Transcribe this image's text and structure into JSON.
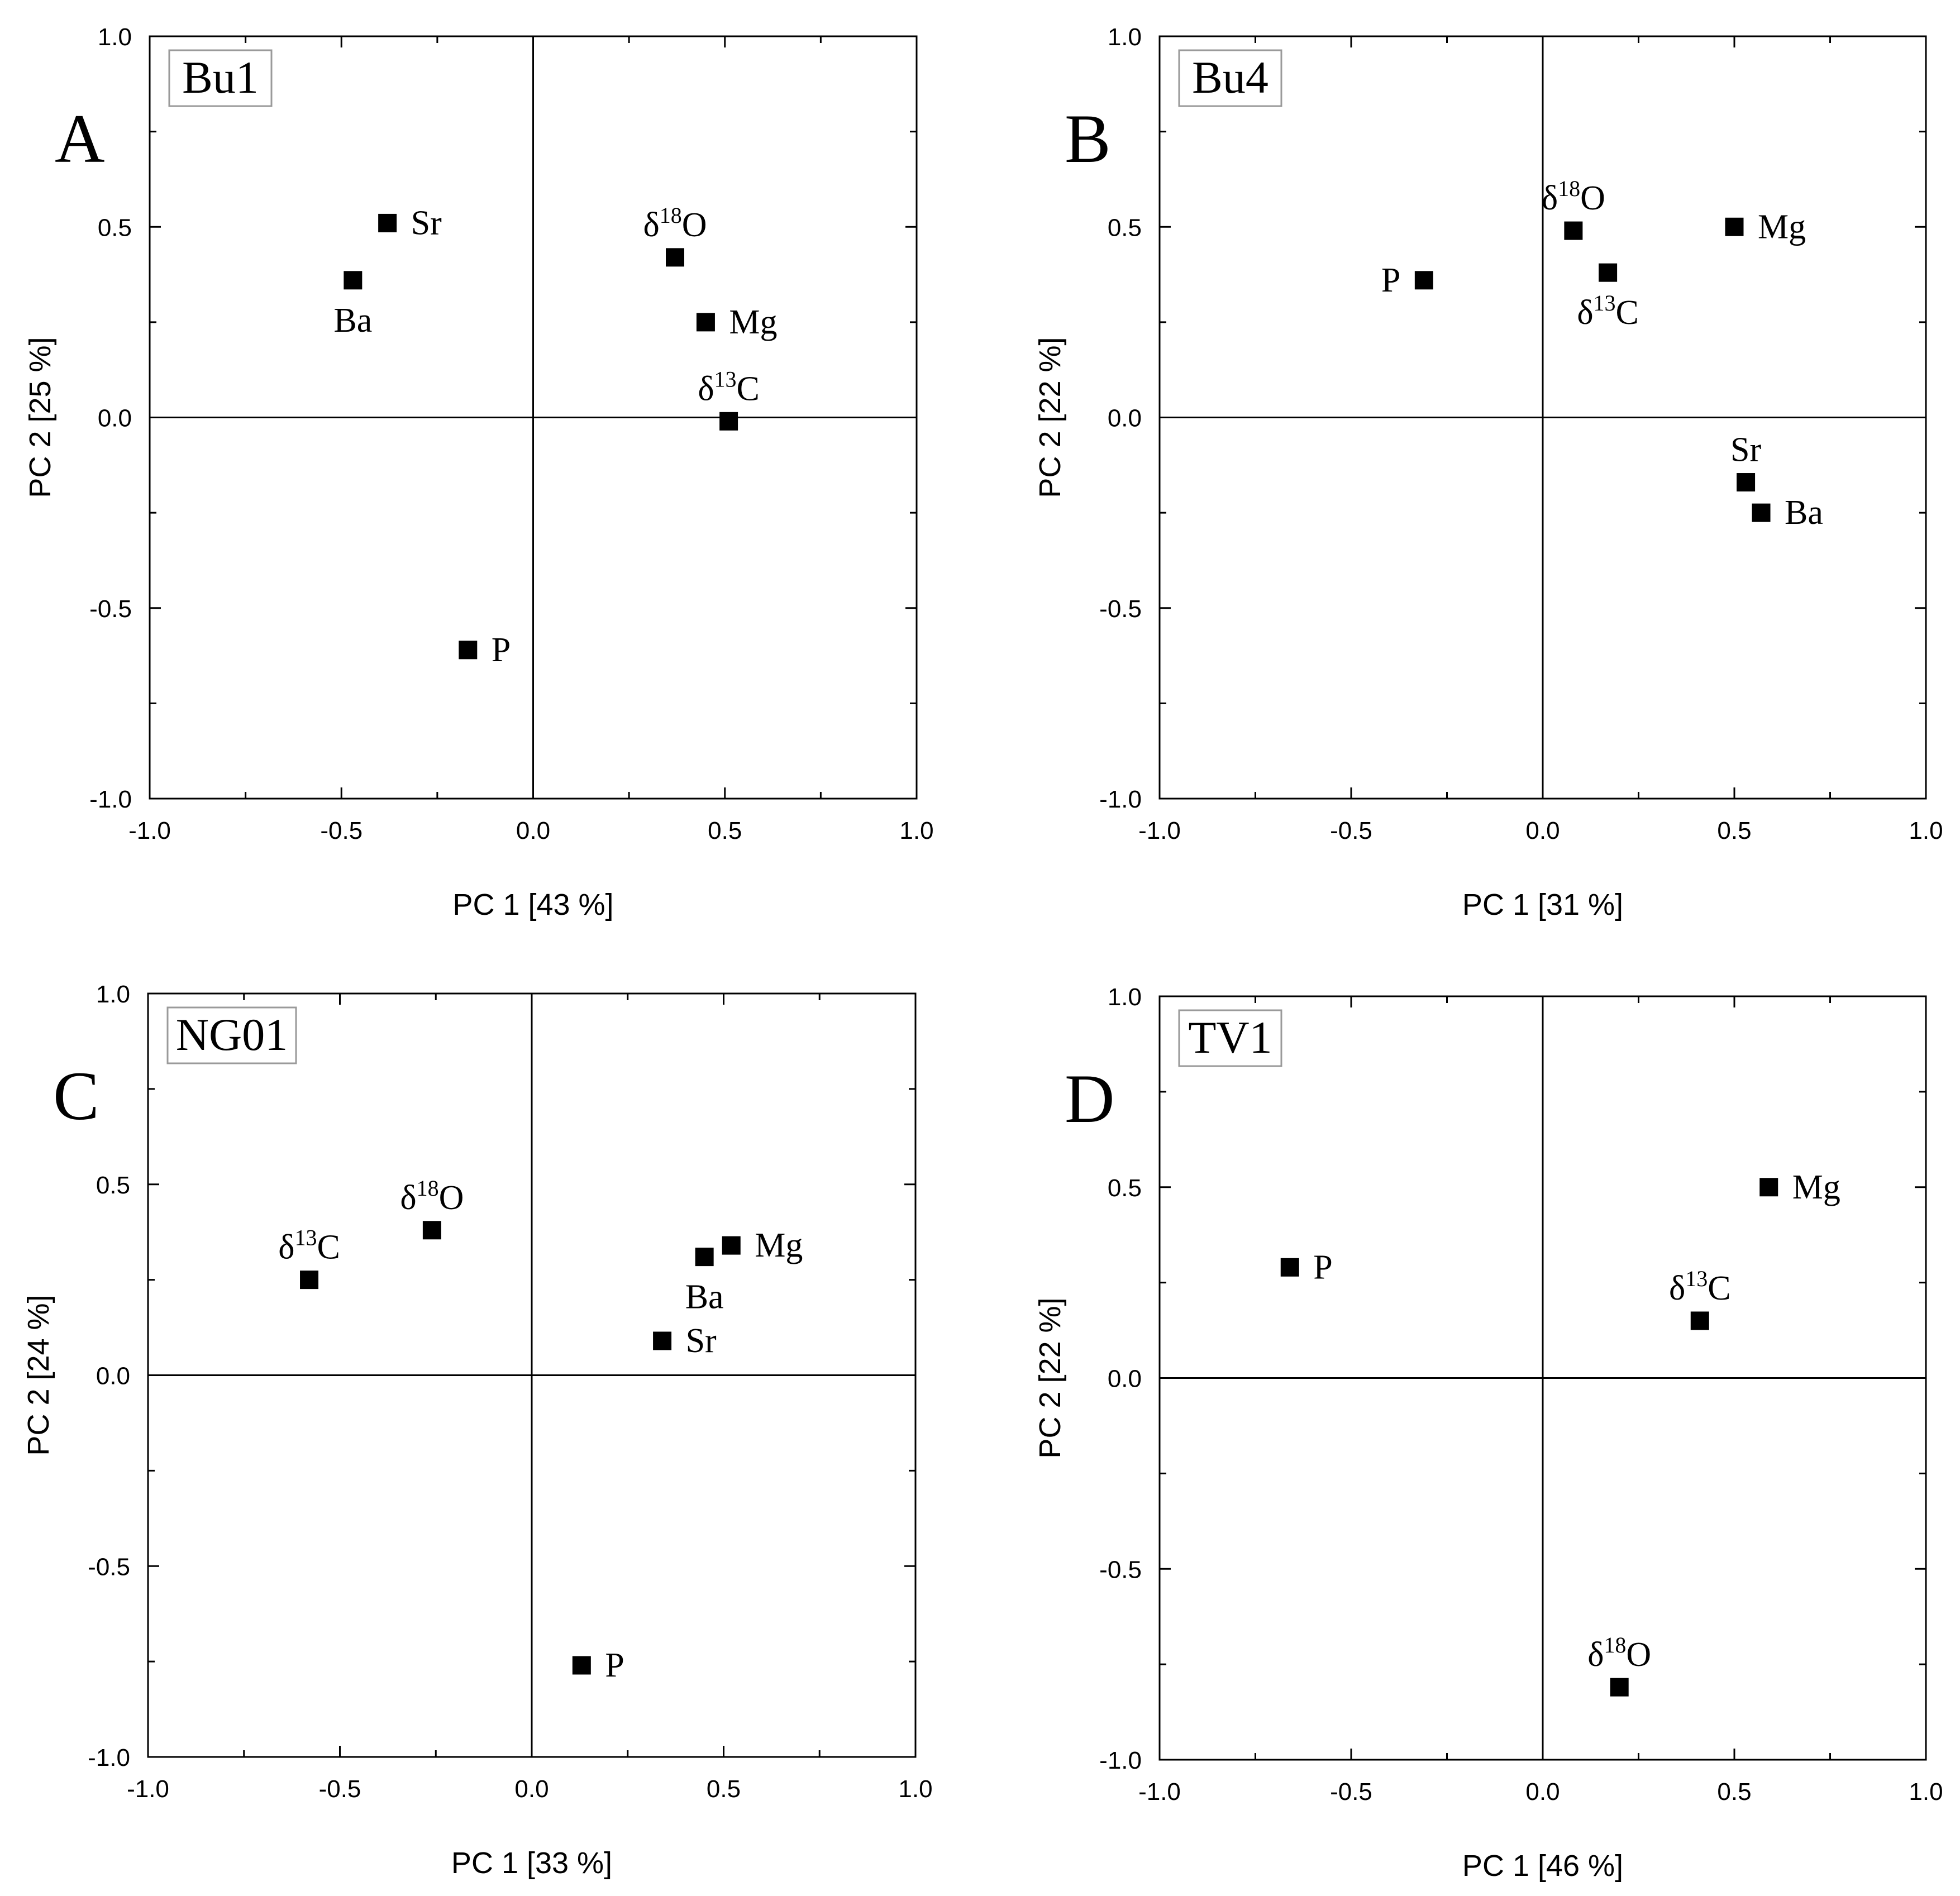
{
  "figure": {
    "background": "#ffffff",
    "ink": "#000000"
  },
  "chart_data": [
    {
      "type": "scatter",
      "panel_letter": "A",
      "sample": "Bu1",
      "xlabel": "PC 1 [43 %]",
      "ylabel": "PC 2 [25 %]",
      "xlim": [
        -1.0,
        1.0
      ],
      "ylim": [
        -1.0,
        1.0
      ],
      "xticks": [
        "-1.0",
        "-0.5",
        "0.0",
        "0.5",
        "1.0"
      ],
      "yticks": [
        "-1.0",
        "-0.5",
        "0.0",
        "0.5",
        "1.0"
      ],
      "points": [
        {
          "label": "Sr",
          "iso": "",
          "x": -0.38,
          "y": 0.51,
          "label_pos": "right"
        },
        {
          "label": "Ba",
          "iso": "",
          "x": -0.47,
          "y": 0.36,
          "label_pos": "below"
        },
        {
          "label": "O",
          "iso": "18",
          "x": 0.37,
          "y": 0.42,
          "label_pos": "above"
        },
        {
          "label": "Mg",
          "iso": "",
          "x": 0.45,
          "y": 0.25,
          "label_pos": "right"
        },
        {
          "label": "C",
          "iso": "13",
          "x": 0.51,
          "y": -0.01,
          "label_pos": "above"
        },
        {
          "label": "P",
          "iso": "",
          "x": -0.17,
          "y": -0.61,
          "label_pos": "right"
        }
      ]
    },
    {
      "type": "scatter",
      "panel_letter": "B",
      "sample": "Bu4",
      "xlabel": "PC 1 [31 %]",
      "ylabel": "PC 2 [22 %]",
      "xlim": [
        -1.0,
        1.0
      ],
      "ylim": [
        -1.0,
        1.0
      ],
      "xticks": [
        "-1.0",
        "-0.5",
        "0.0",
        "0.5",
        "1.0"
      ],
      "yticks": [
        "-1.0",
        "-0.5",
        "0.0",
        "0.5",
        "1.0"
      ],
      "points": [
        {
          "label": "P",
          "iso": "",
          "x": -0.31,
          "y": 0.36,
          "label_pos": "left"
        },
        {
          "label": "O",
          "iso": "18",
          "x": 0.08,
          "y": 0.49,
          "label_pos": "above"
        },
        {
          "label": "C",
          "iso": "13",
          "x": 0.17,
          "y": 0.38,
          "label_pos": "below"
        },
        {
          "label": "Mg",
          "iso": "",
          "x": 0.5,
          "y": 0.5,
          "label_pos": "right"
        },
        {
          "label": "Sr",
          "iso": "",
          "x": 0.53,
          "y": -0.17,
          "label_pos": "above"
        },
        {
          "label": "Ba",
          "iso": "",
          "x": 0.57,
          "y": -0.25,
          "label_pos": "right"
        }
      ]
    },
    {
      "type": "scatter",
      "panel_letter": "C",
      "sample": "NG01",
      "xlabel": "PC 1 [33 %]",
      "ylabel": "PC 2 [24 %]",
      "xlim": [
        -1.0,
        1.0
      ],
      "ylim": [
        -1.0,
        1.0
      ],
      "xticks": [
        "-1.0",
        "-0.5",
        "0.0",
        "0.5",
        "1.0"
      ],
      "yticks": [
        "-1.0",
        "-0.5",
        "0.0",
        "0.5",
        "1.0"
      ],
      "points": [
        {
          "label": "C",
          "iso": "13",
          "x": -0.58,
          "y": 0.25,
          "label_pos": "above"
        },
        {
          "label": "O",
          "iso": "18",
          "x": -0.26,
          "y": 0.38,
          "label_pos": "above"
        },
        {
          "label": "Ba",
          "iso": "",
          "x": 0.45,
          "y": 0.31,
          "label_pos": "below"
        },
        {
          "label": "Mg",
          "iso": "",
          "x": 0.52,
          "y": 0.34,
          "label_pos": "right"
        },
        {
          "label": "Sr",
          "iso": "",
          "x": 0.34,
          "y": 0.09,
          "label_pos": "right"
        },
        {
          "label": "P",
          "iso": "",
          "x": 0.13,
          "y": -0.76,
          "label_pos": "right"
        }
      ]
    },
    {
      "type": "scatter",
      "panel_letter": "D",
      "sample": "TV1",
      "xlabel": "PC 1 [46 %]",
      "ylabel": "PC 2 [22 %]",
      "xlim": [
        -1.0,
        1.0
      ],
      "ylim": [
        -1.0,
        1.0
      ],
      "xticks": [
        "-1.0",
        "-0.5",
        "0.0",
        "0.5",
        "1.0"
      ],
      "yticks": [
        "-1.0",
        "-0.5",
        "0.0",
        "0.5",
        "1.0"
      ],
      "points": [
        {
          "label": "P",
          "iso": "",
          "x": -0.66,
          "y": 0.29,
          "label_pos": "right"
        },
        {
          "label": "Mg",
          "iso": "",
          "x": 0.59,
          "y": 0.5,
          "label_pos": "right"
        },
        {
          "label": "C",
          "iso": "13",
          "x": 0.41,
          "y": 0.15,
          "label_pos": "above"
        },
        {
          "label": "O",
          "iso": "18",
          "x": 0.2,
          "y": -0.81,
          "label_pos": "above"
        }
      ]
    }
  ]
}
